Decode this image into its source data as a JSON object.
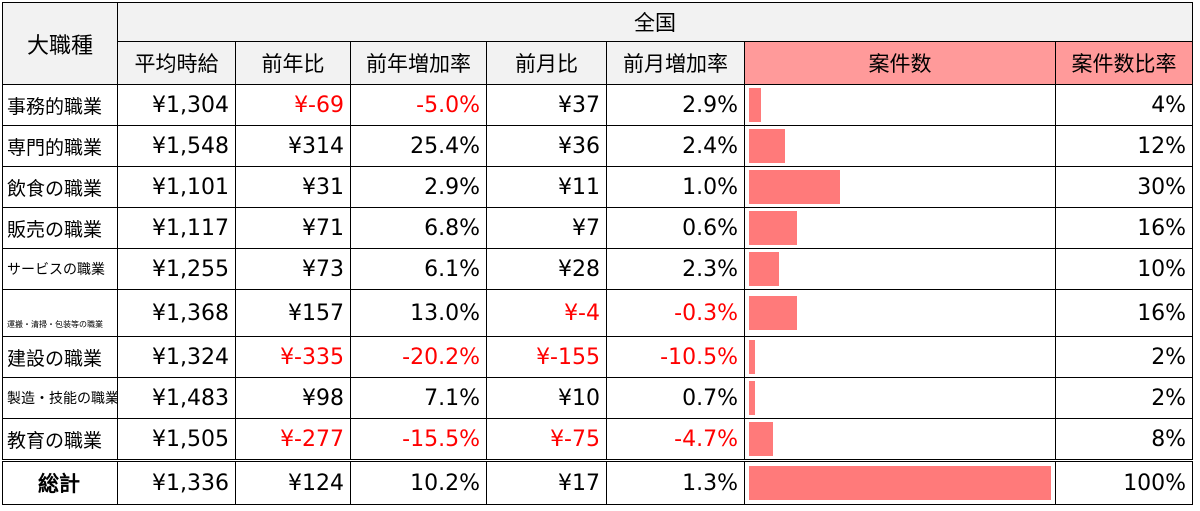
{
  "header": {
    "category": "大職種",
    "region": "全国",
    "columns": [
      "平均時給",
      "前年比",
      "前年増加率",
      "前月比",
      "前月増加率",
      "案件数",
      "案件数比率"
    ]
  },
  "rows": [
    {
      "name": "事務的職業",
      "wage": "¥1,304",
      "yoy": "¥-69",
      "yoy_neg": true,
      "yoy_rate": "-5.0%",
      "yoy_rate_neg": true,
      "mom": "¥37",
      "mom_neg": false,
      "mom_rate": "2.9%",
      "mom_rate_neg": false,
      "bar": 0.04,
      "share": "4%"
    },
    {
      "name": "専門的職業",
      "wage": "¥1,548",
      "yoy": "¥314",
      "yoy_neg": false,
      "yoy_rate": "25.4%",
      "yoy_rate_neg": false,
      "mom": "¥36",
      "mom_neg": false,
      "mom_rate": "2.4%",
      "mom_rate_neg": false,
      "bar": 0.12,
      "share": "12%"
    },
    {
      "name": "飲食の職業",
      "wage": "¥1,101",
      "yoy": "¥31",
      "yoy_neg": false,
      "yoy_rate": "2.9%",
      "yoy_rate_neg": false,
      "mom": "¥11",
      "mom_neg": false,
      "mom_rate": "1.0%",
      "mom_rate_neg": false,
      "bar": 0.3,
      "share": "30%"
    },
    {
      "name": "販売の職業",
      "wage": "¥1,117",
      "yoy": "¥71",
      "yoy_neg": false,
      "yoy_rate": "6.8%",
      "yoy_rate_neg": false,
      "mom": "¥7",
      "mom_neg": false,
      "mom_rate": "0.6%",
      "mom_rate_neg": false,
      "bar": 0.16,
      "share": "16%"
    },
    {
      "name": "サービスの職業",
      "size": "small",
      "wage": "¥1,255",
      "yoy": "¥73",
      "yoy_neg": false,
      "yoy_rate": "6.1%",
      "yoy_rate_neg": false,
      "mom": "¥28",
      "mom_neg": false,
      "mom_rate": "2.3%",
      "mom_rate_neg": false,
      "bar": 0.1,
      "share": "10%"
    },
    {
      "name": "運搬・清掃・包装等の職業",
      "size": "xsmall",
      "wage": "¥1,368",
      "yoy": "¥157",
      "yoy_neg": false,
      "yoy_rate": "13.0%",
      "yoy_rate_neg": false,
      "mom": "¥-4",
      "mom_neg": true,
      "mom_rate": "-0.3%",
      "mom_rate_neg": true,
      "bar": 0.16,
      "share": "16%"
    },
    {
      "name": "建設の職業",
      "wage": "¥1,324",
      "yoy": "¥-335",
      "yoy_neg": true,
      "yoy_rate": "-20.2%",
      "yoy_rate_neg": true,
      "mom": "¥-155",
      "mom_neg": true,
      "mom_rate": "-10.5%",
      "mom_rate_neg": true,
      "bar": 0.02,
      "share": "2%"
    },
    {
      "name": "製造・技能の職業",
      "size": "small",
      "wage": "¥1,483",
      "yoy": "¥98",
      "yoy_neg": false,
      "yoy_rate": "7.1%",
      "yoy_rate_neg": false,
      "mom": "¥10",
      "mom_neg": false,
      "mom_rate": "0.7%",
      "mom_rate_neg": false,
      "bar": 0.02,
      "share": "2%"
    },
    {
      "name": "教育の職業",
      "wage": "¥1,505",
      "yoy": "¥-277",
      "yoy_neg": true,
      "yoy_rate": "-15.5%",
      "yoy_rate_neg": true,
      "mom": "¥-75",
      "mom_neg": true,
      "mom_rate": "-4.7%",
      "mom_rate_neg": true,
      "bar": 0.08,
      "share": "8%"
    }
  ],
  "total": {
    "name": "総計",
    "wage": "¥1,336",
    "yoy": "¥124",
    "yoy_rate": "10.2%",
    "mom": "¥17",
    "mom_rate": "1.3%",
    "bar": 1.0,
    "share": "100%"
  },
  "colors": {
    "negative": "#ff0000",
    "bar": "#ff7a7a",
    "highlight_header": "#ff9a9a"
  }
}
